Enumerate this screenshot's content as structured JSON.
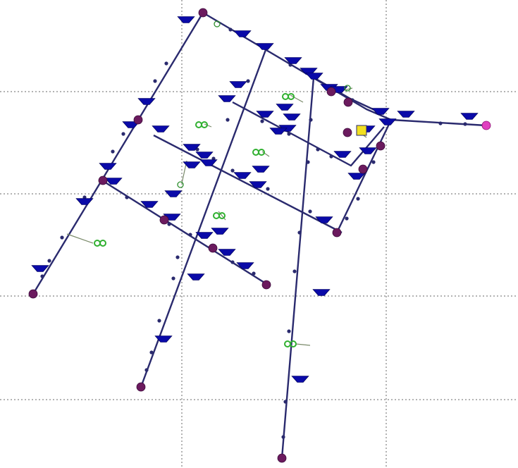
{
  "diagram": {
    "type": "pipe-network",
    "background": "#ffffff",
    "colors": {
      "pipe": "#2a2a6e",
      "fixture": "#0a0aa8",
      "node": "#6b1a5e",
      "source": "#e040c0",
      "connector": "#30b030",
      "grid": "#9a9a9a",
      "selected": "#f2e020"
    },
    "legend": []
  }
}
